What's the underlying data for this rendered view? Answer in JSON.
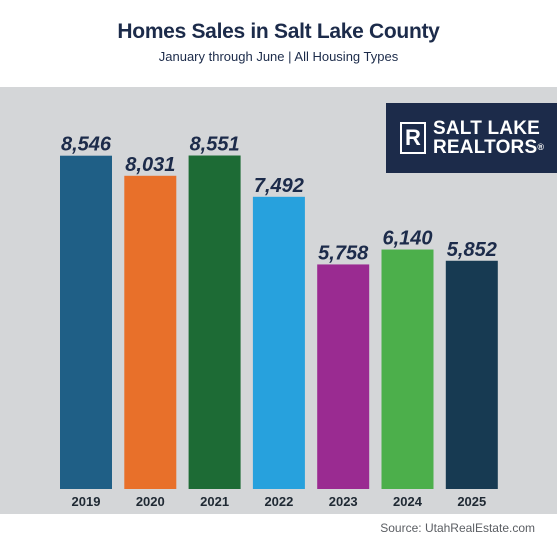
{
  "header": {
    "title": "Homes Sales in Salt Lake County",
    "subtitle": "January through June | All Housing Types"
  },
  "logo": {
    "mark": "R",
    "line1": "SALT LAKE",
    "line2": "REALTORS",
    "trademark": "®"
  },
  "source": "Source: UtahRealEstate.com",
  "colors": {
    "panel": "#d4d6d8",
    "label": "#1c2b4a"
  },
  "chart_data": {
    "type": "bar",
    "title": "Homes Sales in Salt Lake County",
    "subtitle": "January through June | All Housing Types",
    "categories": [
      "2019",
      "2020",
      "2021",
      "2022",
      "2023",
      "2024",
      "2025"
    ],
    "values": [
      8546,
      8031,
      8551,
      7492,
      5758,
      6140,
      5852
    ],
    "value_labels": [
      "8,546",
      "8,031",
      "8,551",
      "7,492",
      "5,758",
      "6,140",
      "5,852"
    ],
    "bar_colors": [
      "#1f5f86",
      "#e8702a",
      "#1d6b35",
      "#27a1dd",
      "#9a2b91",
      "#4caf4b",
      "#173a52"
    ],
    "ylim": [
      0,
      10000
    ],
    "grid": false,
    "legend": "none"
  }
}
